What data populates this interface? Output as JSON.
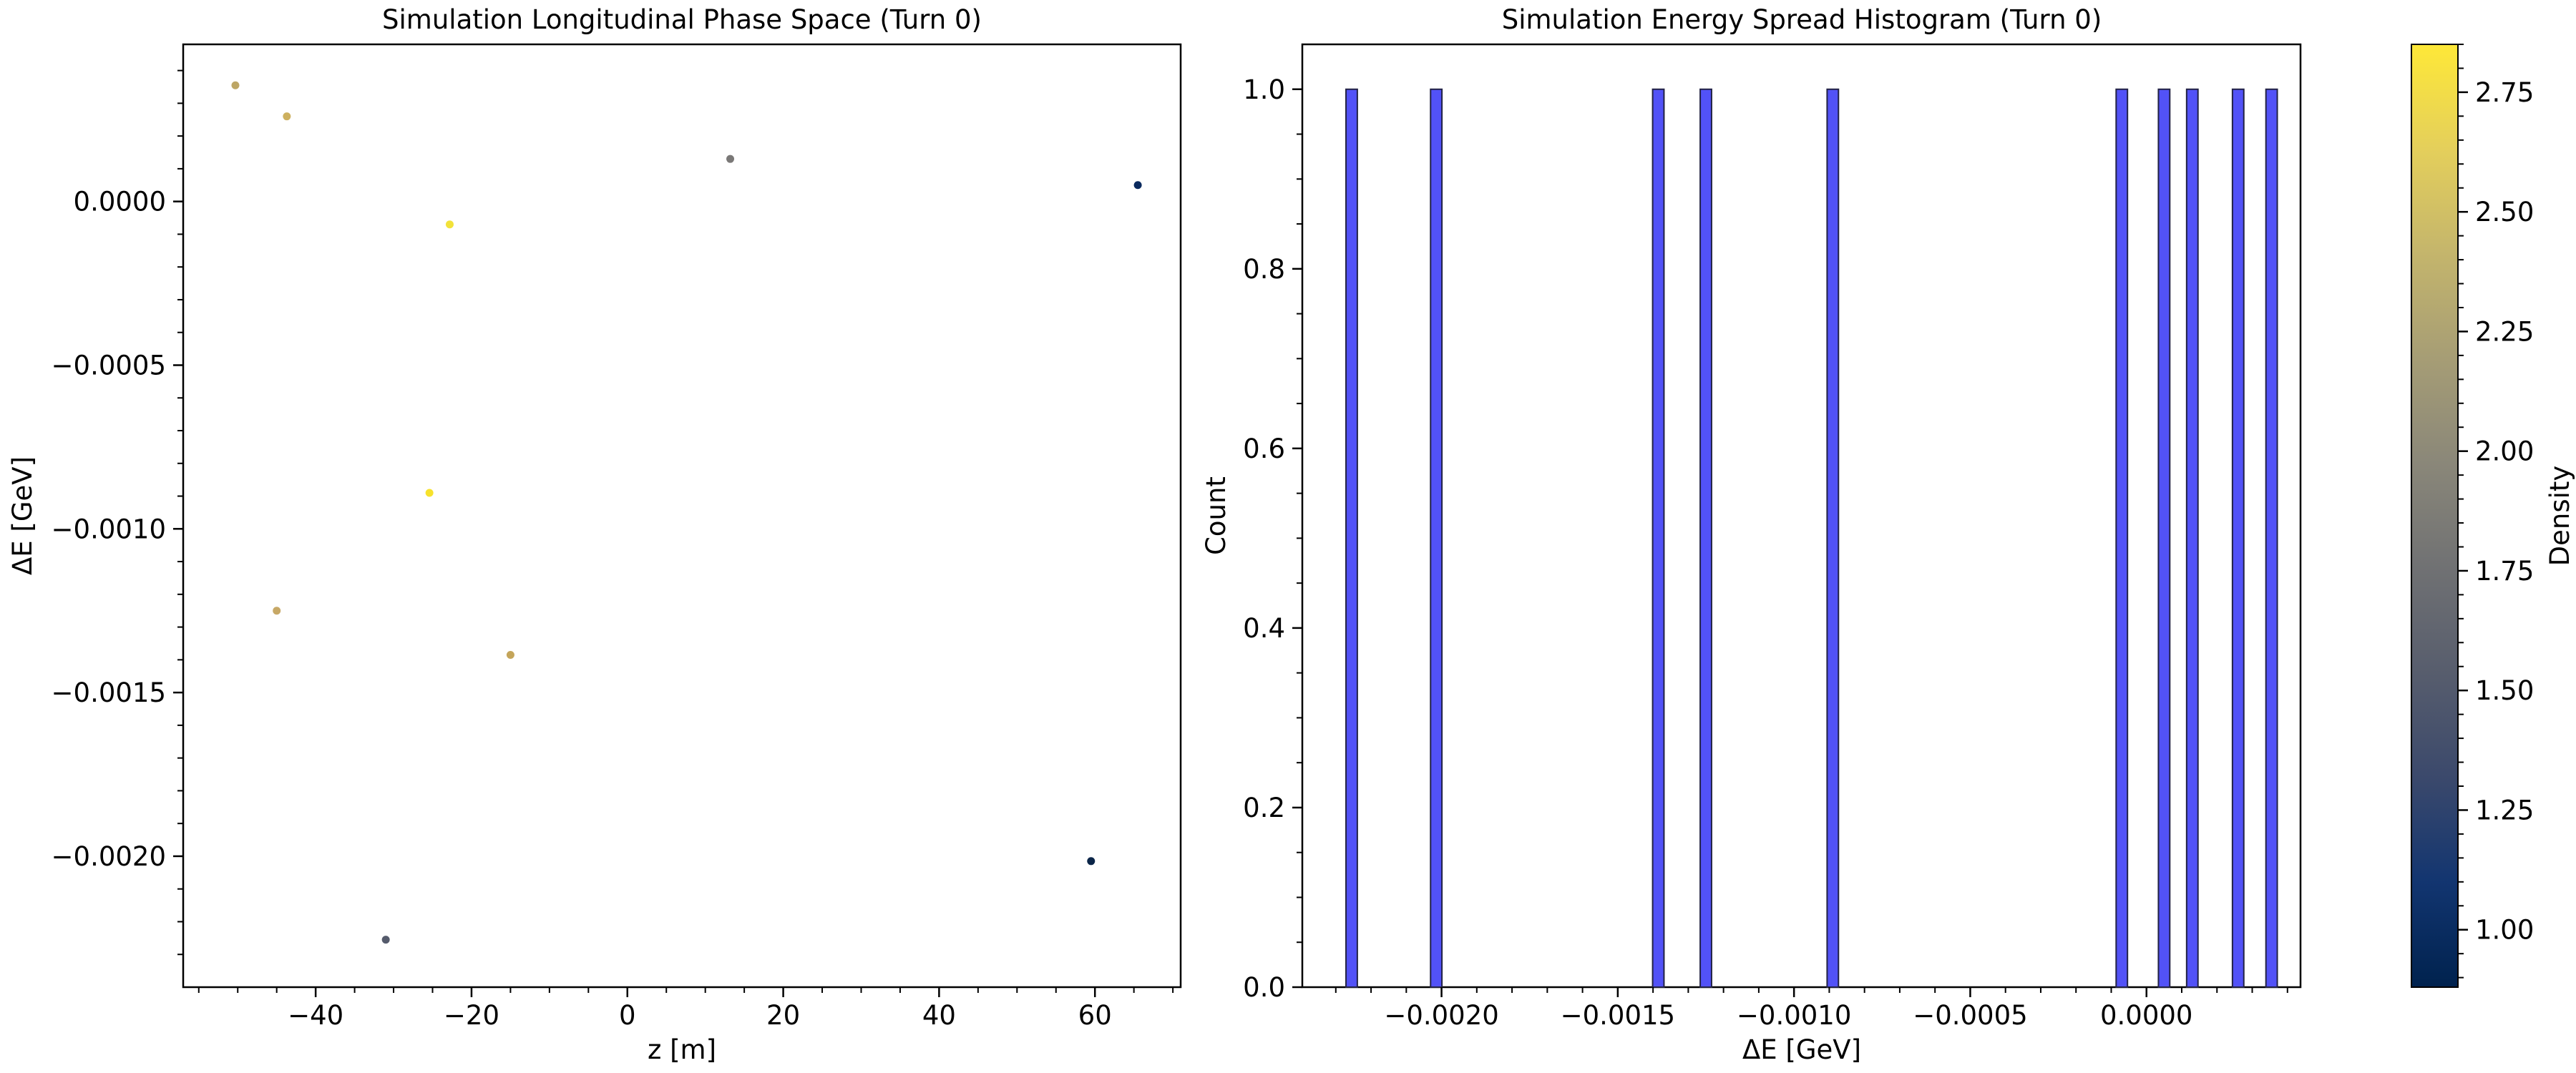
{
  "chart_data": [
    {
      "type": "scatter",
      "title": "Simulation Longitudinal Phase Space (Turn 0)",
      "xlabel": "z [m]",
      "ylabel": "ΔE [GeV]",
      "xlim": [
        -57,
        71
      ],
      "ylim": [
        -0.0024,
        0.00048
      ],
      "xticks": [
        -40,
        -20,
        0,
        20,
        40,
        60
      ],
      "xtick_labels": [
        "−40",
        "−20",
        "0",
        "20",
        "40",
        "60"
      ],
      "yticks": [
        0.0,
        -0.0005,
        -0.001,
        -0.0015,
        -0.002
      ],
      "ytick_labels": [
        "0.0000",
        "−0.0005",
        "−0.0010",
        "−0.0015",
        "−0.0020"
      ],
      "grid": false,
      "points": [
        {
          "x": -50.3,
          "y": 0.000355,
          "density": 2.3,
          "color": "#bda665"
        },
        {
          "x": -43.7,
          "y": 0.00026,
          "density": 2.45,
          "color": "#cdb05f"
        },
        {
          "x": -22.8,
          "y": -7e-05,
          "density": 2.85,
          "color": "#f2e23a"
        },
        {
          "x": -25.4,
          "y": -0.00089,
          "density": 2.85,
          "color": "#f7e22c"
        },
        {
          "x": -45.0,
          "y": -0.00125,
          "density": 2.4,
          "color": "#c7a866"
        },
        {
          "x": -15.0,
          "y": -0.001385,
          "density": 2.35,
          "color": "#c4a55a"
        },
        {
          "x": 13.2,
          "y": 0.00013,
          "density": 1.9,
          "color": "#7a7877"
        },
        {
          "x": 65.5,
          "y": 5e-05,
          "density": 0.95,
          "color": "#0a2a5e"
        },
        {
          "x": 59.5,
          "y": -0.002015,
          "density": 0.9,
          "color": "#0b2548"
        },
        {
          "x": -31.0,
          "y": -0.002255,
          "density": 1.55,
          "color": "#555b6c"
        }
      ],
      "colorbar": {
        "label": "Density",
        "range": [
          0.88,
          2.85
        ],
        "ticks": [
          1.0,
          1.25,
          1.5,
          1.75,
          2.0,
          2.25,
          2.5,
          2.75
        ],
        "tick_labels": [
          "1.00",
          "1.25",
          "1.50",
          "1.75",
          "2.00",
          "2.25",
          "2.50",
          "2.75"
        ],
        "colormap": "cividis",
        "colors": [
          "#00224e",
          "#123570",
          "#3b496c",
          "#575d6d",
          "#707173",
          "#8a8779",
          "#a69d75",
          "#c4b56c",
          "#e4cf5b",
          "#fee838"
        ]
      }
    },
    {
      "type": "bar",
      "title": "Simulation Energy Spread Histogram (Turn 0)",
      "xlabel": "ΔE [GeV]",
      "ylabel": "Count",
      "xlim": [
        -0.002395,
        0.000437
      ],
      "ylim": [
        0,
        1.05
      ],
      "xticks": [
        -0.002,
        -0.0015,
        -0.001,
        -0.0005,
        0.0
      ],
      "xtick_labels": [
        "−0.0020",
        "−0.0015",
        "−0.0010",
        "−0.0005",
        "0.0000"
      ],
      "yticks": [
        0.0,
        0.2,
        0.4,
        0.6,
        0.8,
        1.0
      ],
      "ytick_labels": [
        "0.0",
        "0.2",
        "0.4",
        "0.6",
        "0.8",
        "1.0"
      ],
      "bin_width": 3.22e-05,
      "bars": [
        {
          "x": -0.002255,
          "count": 1
        },
        {
          "x": -0.002015,
          "count": 1
        },
        {
          "x": -0.001385,
          "count": 1
        },
        {
          "x": -0.00125,
          "count": 1
        },
        {
          "x": -0.00089,
          "count": 1
        },
        {
          "x": -7e-05,
          "count": 1
        },
        {
          "x": 5e-05,
          "count": 1
        },
        {
          "x": 0.00013,
          "count": 1
        },
        {
          "x": 0.00026,
          "count": 1
        },
        {
          "x": 0.000355,
          "count": 1
        }
      ],
      "bar_color": "#5252f7",
      "grid": false
    }
  ]
}
